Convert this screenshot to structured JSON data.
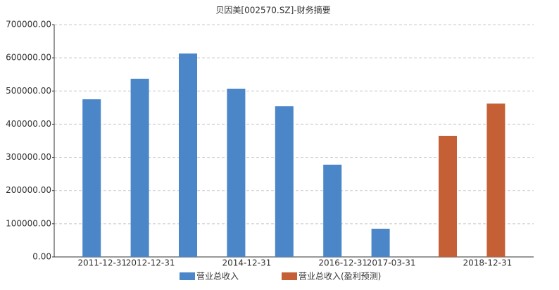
{
  "chart_data": {
    "type": "bar",
    "title": "贝因美[002570.SZ]-财务摘要",
    "categories": [
      "2011-12-31",
      "2012-12-31",
      null,
      "2014-12-31",
      null,
      "2016-12-31",
      "2017-03-31",
      null,
      "2018-12-31"
    ],
    "series": [
      {
        "name": "营业总收入",
        "color": "#4a86c8",
        "values": [
          475000,
          537000,
          613000,
          507000,
          454000,
          278000,
          85000,
          null,
          null
        ]
      },
      {
        "name": "营业总收入(盈利预测)",
        "color": "#c55f35",
        "values": [
          null,
          null,
          null,
          null,
          null,
          null,
          null,
          365000,
          462000
        ]
      }
    ],
    "ylim": [
      0,
      700000
    ],
    "yticks": [
      {
        "value": 0,
        "label": "0.00"
      },
      {
        "value": 100000,
        "label": "100000.00"
      },
      {
        "value": 200000,
        "label": "200000.00"
      },
      {
        "value": 300000,
        "label": "300000.00"
      },
      {
        "value": 400000,
        "label": "400000.00"
      },
      {
        "value": 500000,
        "label": "500000.00"
      },
      {
        "value": 600000,
        "label": "600000.00"
      },
      {
        "value": 700000,
        "label": "700000.00"
      }
    ],
    "grid": true
  }
}
